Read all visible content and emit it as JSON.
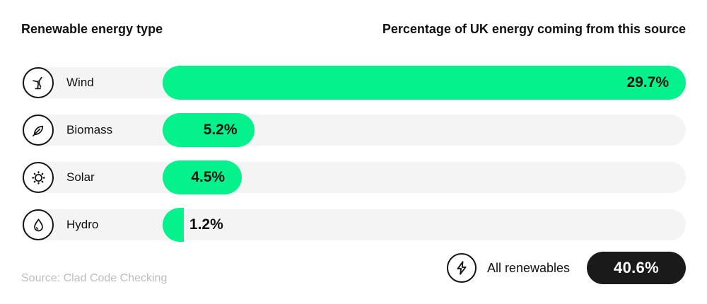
{
  "header": {
    "left_title": "Renewable energy type",
    "right_title": "Percentage of UK energy coming from this source"
  },
  "chart_data": {
    "type": "bar",
    "orientation": "horizontal",
    "title": "",
    "categories": [
      "Wind",
      "Biomass",
      "Solar",
      "Hydro"
    ],
    "values": [
      29.7,
      5.2,
      4.5,
      1.2
    ],
    "value_labels": [
      "29.7%",
      "5.2%",
      "4.5%",
      "1.2%"
    ],
    "icons": [
      "wind-turbine",
      "leaf",
      "sun",
      "water-drop"
    ],
    "xlim": [
      0,
      29.7
    ],
    "grid": false,
    "legend_position": "none",
    "bar_color": "#05F18B",
    "track_color": "#F4F4F4",
    "total": {
      "label": "All renewables",
      "value": 40.6,
      "value_label": "40.6%",
      "icon": "lightning-bolt"
    }
  },
  "rows": [
    {
      "label": "Wind",
      "value": "29.7%",
      "icon": "wind-turbine"
    },
    {
      "label": "Biomass",
      "value": "5.2%",
      "icon": "leaf"
    },
    {
      "label": "Solar",
      "value": "4.5%",
      "icon": "sun"
    },
    {
      "label": "Hydro",
      "value": "1.2%",
      "icon": "water-drop"
    }
  ],
  "summary": {
    "label": "All renewables",
    "value": "40.6%",
    "icon": "lightning-bolt",
    "pill_color": "#1A1A1A"
  },
  "footer": {
    "source": "Source: Clad Code Checking"
  },
  "colors": {
    "bar_green": "#05F18B",
    "row_track_gray": "#F4F4F4",
    "text_black": "#111111",
    "muted_gray": "#BDBDBD",
    "pill_black": "#1A1A1A",
    "background": "#FFFFFF"
  }
}
